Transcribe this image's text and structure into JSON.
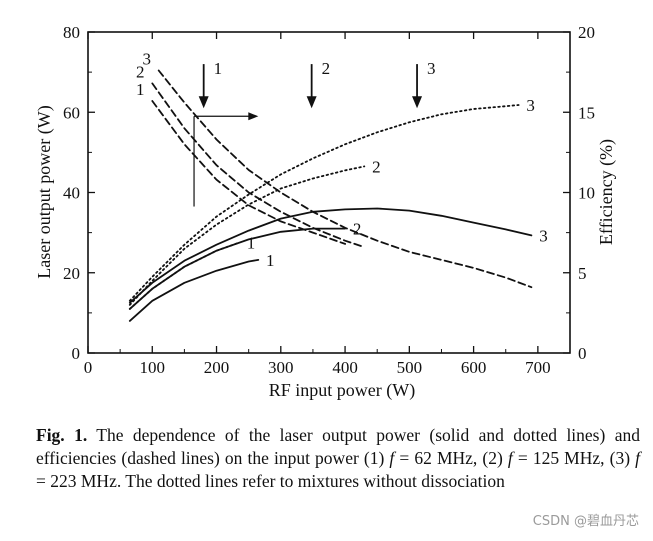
{
  "chart_data": {
    "type": "line",
    "title": "",
    "xlabel": "RF input power (W)",
    "ylabel": "Laser output power (W)",
    "y2label": "Efficiency (%)",
    "xlim": [
      0,
      750
    ],
    "ylim": [
      0,
      80
    ],
    "y2lim": [
      0,
      20
    ],
    "x_ticks": [
      "0",
      "100",
      "200",
      "300",
      "400",
      "500",
      "600",
      "700"
    ],
    "y_ticks": [
      "0",
      "20",
      "40",
      "60",
      "80"
    ],
    "y2_ticks": [
      "0",
      "5",
      "10",
      "15",
      "20"
    ],
    "series": [
      {
        "name": "1",
        "style": "solid",
        "axis": "left",
        "x": [
          65,
          100,
          150,
          200,
          250,
          265
        ],
        "y": [
          8,
          13,
          17.5,
          20.5,
          22.8,
          23.2
        ]
      },
      {
        "name": "2",
        "style": "solid",
        "axis": "left",
        "x": [
          65,
          100,
          150,
          200,
          250,
          300,
          350,
          400
        ],
        "y": [
          11,
          16,
          21.5,
          25.5,
          28.3,
          30.2,
          31,
          31
        ]
      },
      {
        "name": "3",
        "style": "solid",
        "axis": "left",
        "x": [
          65,
          100,
          150,
          200,
          250,
          300,
          350,
          400,
          450,
          500,
          550,
          600,
          650,
          690
        ],
        "y": [
          12.5,
          17.5,
          23,
          27,
          30.5,
          33.5,
          35.2,
          35.8,
          36,
          35.5,
          34.2,
          32.5,
          30.8,
          29.3
        ]
      },
      {
        "name": "1",
        "style": "dotted",
        "axis": "left",
        "x": [
          65,
          100,
          150,
          200,
          235
        ],
        "y": [
          11,
          16,
          21.5,
          25.5,
          27.5
        ]
      },
      {
        "name": "2",
        "style": "dotted",
        "axis": "left",
        "x": [
          65,
          100,
          150,
          200,
          250,
          300,
          350,
          400,
          430
        ],
        "y": [
          12,
          18,
          26,
          32,
          37,
          41,
          43.5,
          45.5,
          46.5
        ]
      },
      {
        "name": "3",
        "style": "dotted",
        "axis": "left",
        "x": [
          65,
          100,
          150,
          200,
          250,
          300,
          350,
          400,
          450,
          500,
          550,
          600,
          650,
          670
        ],
        "y": [
          13,
          19,
          27,
          34,
          39.5,
          44.5,
          48.5,
          52,
          55,
          57.5,
          59.5,
          60.8,
          61.5,
          61.8
        ]
      },
      {
        "name": "1",
        "style": "dashed",
        "axis": "right",
        "x": [
          100,
          150,
          200,
          250,
          300,
          350,
          400
        ],
        "y": [
          15.7,
          13,
          10.8,
          9.2,
          8.2,
          7.5,
          6.8
        ]
      },
      {
        "name": "2",
        "style": "dashed",
        "axis": "right",
        "x": [
          100,
          150,
          200,
          250,
          300,
          350,
          400,
          430
        ],
        "y": [
          16.8,
          14,
          11.7,
          10,
          8.8,
          7.8,
          7,
          6.6
        ]
      },
      {
        "name": "3",
        "style": "dashed",
        "axis": "right",
        "x": [
          110,
          150,
          200,
          250,
          300,
          350,
          400,
          450,
          500,
          550,
          600,
          650,
          690
        ],
        "y": [
          17.6,
          15.6,
          13.3,
          11.4,
          10,
          8.8,
          7.8,
          7,
          6.3,
          5.8,
          5.3,
          4.7,
          4.1
        ]
      }
    ],
    "annotations": [
      {
        "type": "arrow-down",
        "label": "1",
        "x": 180,
        "y_top": 72,
        "y_bottom": 61
      },
      {
        "type": "arrow-down",
        "label": "2",
        "x": 348,
        "y_top": 72,
        "y_bottom": 61
      },
      {
        "type": "arrow-down",
        "label": "3",
        "x": 512,
        "y_top": 72,
        "y_bottom": 61
      },
      {
        "type": "bracket-arrow",
        "x": 165,
        "x_end": 265,
        "y_top": 59,
        "y_bottom": 36.5
      }
    ]
  },
  "caption": {
    "label": "Fig. 1.",
    "segments": [
      {
        "t": " The dependence of the laser output power (solid and dotted lines) and efficiencies (dashed lines) on the input power (1) ",
        "i": false
      },
      {
        "t": "f",
        "i": true
      },
      {
        "t": " = 62 MHz, (2) ",
        "i": false
      },
      {
        "t": "f",
        "i": true
      },
      {
        "t": " = 125 MHz, (3) ",
        "i": false
      },
      {
        "t": "f",
        "i": true
      },
      {
        "t": " = 223 MHz. The dotted lines refer to mixtures without dissociation",
        "i": false
      }
    ]
  },
  "watermark": "CSDN @碧血丹芯"
}
